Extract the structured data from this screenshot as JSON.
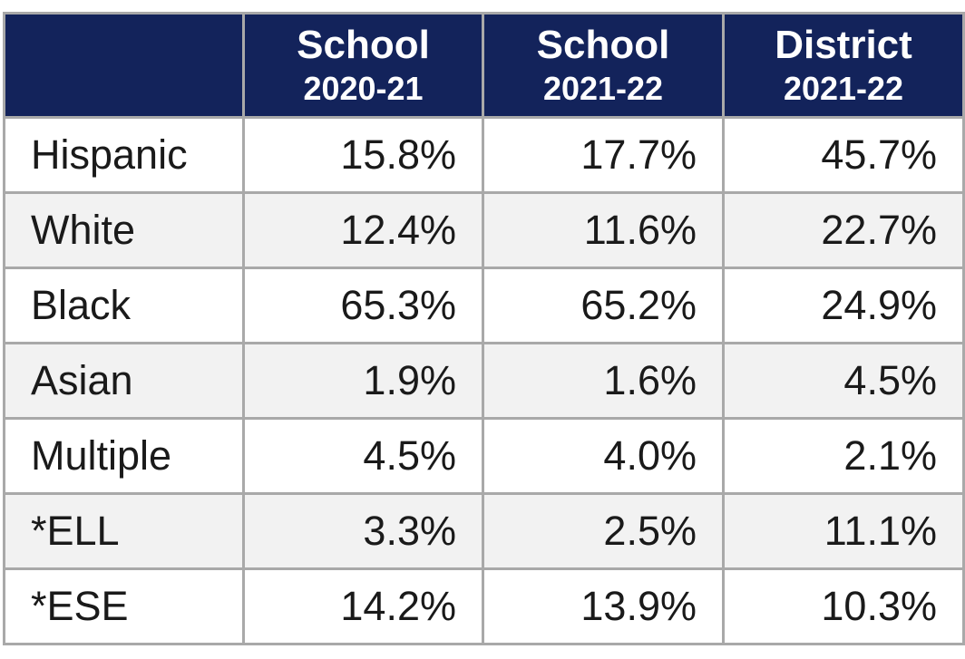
{
  "table": {
    "header": [
      {
        "line1": "School",
        "line2": "2020-21"
      },
      {
        "line1": "School",
        "line2": "2021-22"
      },
      {
        "line1": "District",
        "line2": "2021-22"
      }
    ],
    "rows": [
      [
        "Hispanic",
        "15.8%",
        "17.7%",
        "45.7%"
      ],
      [
        "White",
        "12.4%",
        "11.6%",
        "22.7%"
      ],
      [
        "Black",
        "65.3%",
        "65.2%",
        "24.9%"
      ],
      [
        "Asian",
        "1.9%",
        "1.6%",
        "4.5%"
      ],
      [
        "Multiple",
        "4.5%",
        "4.0%",
        "2.1%"
      ],
      [
        "*ELL",
        "3.3%",
        "2.5%",
        "11.1%"
      ],
      [
        "*ESE",
        "14.2%",
        "13.9%",
        "10.3%"
      ]
    ]
  }
}
